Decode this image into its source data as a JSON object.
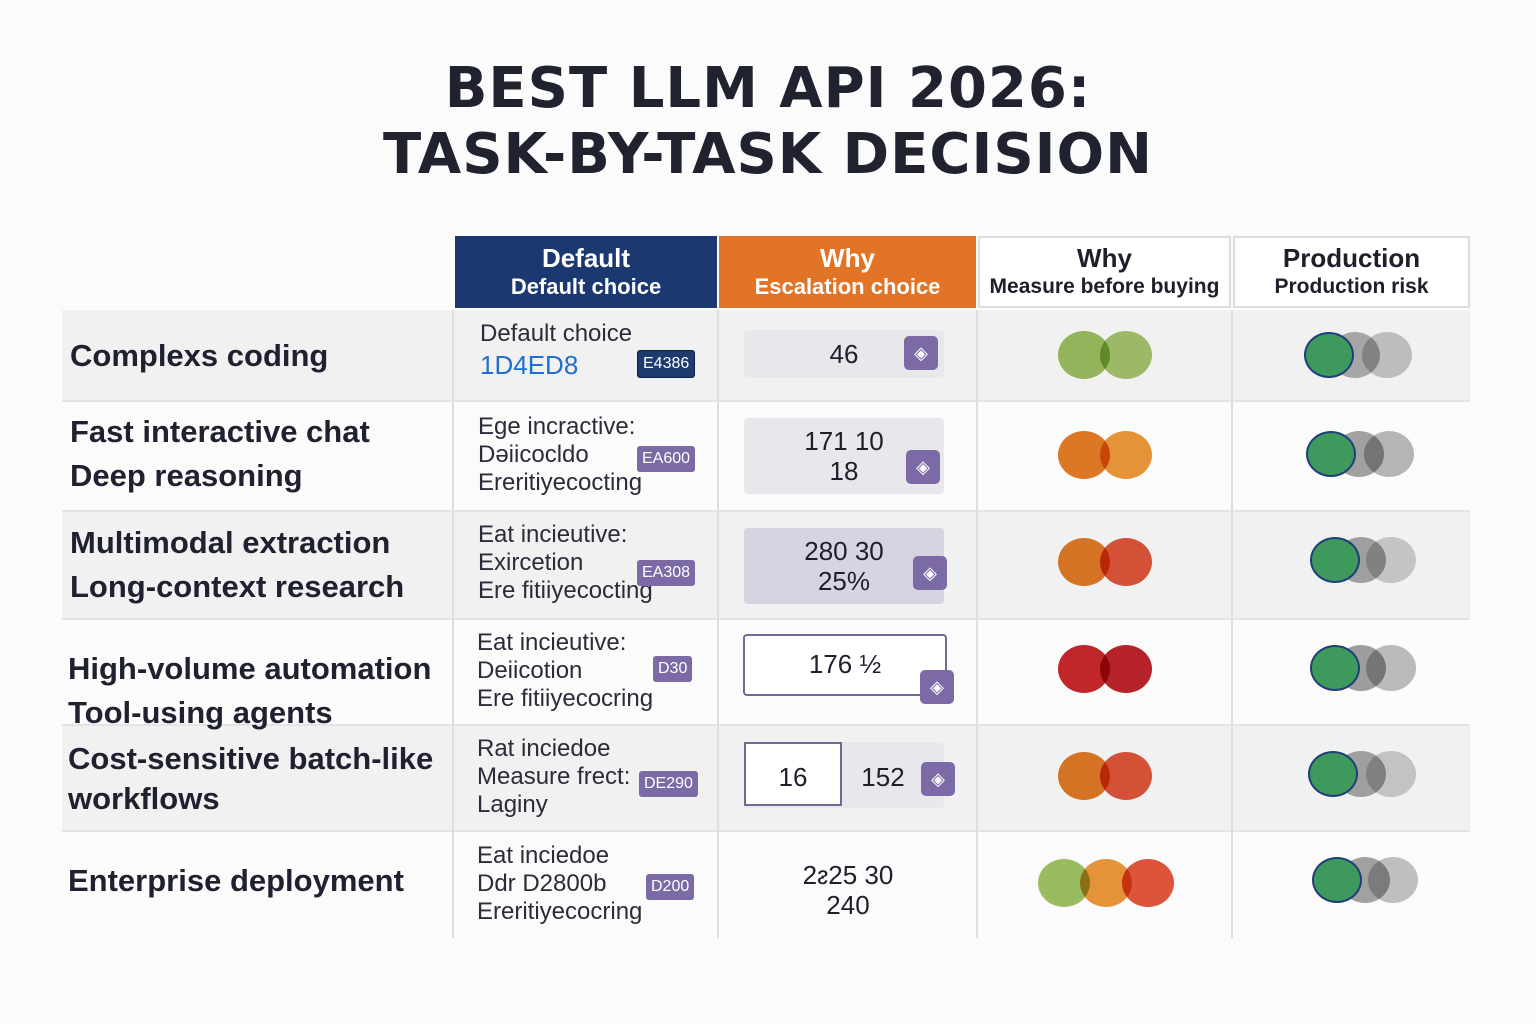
{
  "title": {
    "line1": "BEST LLM API 2026:",
    "line2": "TASK-BY-TASK DECISION"
  },
  "headers": [
    {
      "line1": "Default",
      "line2": "Default choice",
      "color": "#1c3870"
    },
    {
      "line1": "Why",
      "line2": "Escalation choice",
      "color": "#e27427"
    },
    {
      "line1": "Why",
      "line2": "Measure before buying"
    },
    {
      "line1": "Production",
      "line2": "Production risk"
    }
  ],
  "rows": [
    {
      "task": [
        "Complexs coding"
      ],
      "default": [
        "Default choice",
        "1D4ED8"
      ],
      "default_badge": "E4386",
      "escalation": [
        "46"
      ],
      "measure_colors": [
        "#9dbf61",
        "#9dbf61"
      ],
      "risk_colors": [
        "#3e9a5c",
        "#b0b0b0",
        "#c8c8c8"
      ]
    },
    {
      "task": [
        "Fast interactive chat",
        "Deep reasoning"
      ],
      "default": [
        "Ege incractive:",
        "Dәiicocldo",
        "Ereritiyecocting"
      ],
      "default_badge": "EA600",
      "escalation": [
        "171 10",
        "18"
      ],
      "measure_colors": [
        "#e07a24",
        "#e8953a"
      ],
      "risk_colors": [
        "#3e9a5c",
        "#a4a4a4",
        "#b8b8b8"
      ]
    },
    {
      "task": [
        "Multimodal extraction",
        "Long-context research"
      ],
      "default": [
        "Eat incieutive:",
        "Exircetion",
        "Ere fitiiyecocting"
      ],
      "default_badge": "EA308",
      "escalation": [
        "280 30",
        "25%"
      ],
      "measure_colors": [
        "#e07a24",
        "#e0553a"
      ],
      "risk_colors": [
        "#3e9a5c",
        "#a8a8a8",
        "#d0d0d0"
      ]
    },
    {
      "task": [
        "High-volume automation",
        "Tool-using agents"
      ],
      "default": [
        "Eat incieutive:",
        "Deiicotion",
        "Ere fitiiyecocring"
      ],
      "default_badge": "D30",
      "escalation": [
        "176 ½"
      ],
      "measure_colors": [
        "#c4262b",
        "#b8222a"
      ],
      "risk_colors": [
        "#3e9a5c",
        "#a0a0a0",
        "#bdbdbd"
      ]
    },
    {
      "task": [
        "Cost-sensitive batch-like",
        "workflows"
      ],
      "default": [
        "Rat inciedoe",
        "Measure frect:",
        "Laginy"
      ],
      "default_badge": "DE290",
      "escalation": [
        "16",
        "152"
      ],
      "measure_colors": [
        "#e07a24",
        "#e0553a"
      ],
      "risk_colors": [
        "#3e9a5c",
        "#a8a8a8",
        "#cfcfcf"
      ]
    },
    {
      "task": [
        "Enterprise deployment"
      ],
      "default": [
        "Eat inciedoe",
        "Ddr D2800b",
        "Ereritiyecocring"
      ],
      "default_badge": "D200",
      "escalation": [
        "2ᴤ25 30",
        "240"
      ],
      "measure_colors": [
        "#9dbf61",
        "#e8953a",
        "#e0553a"
      ],
      "risk_colors": [
        "#3e9a5c",
        "#a4a4a4",
        "#c2c2c2"
      ]
    }
  ],
  "icons": {
    "escalation": "gem-icon"
  }
}
